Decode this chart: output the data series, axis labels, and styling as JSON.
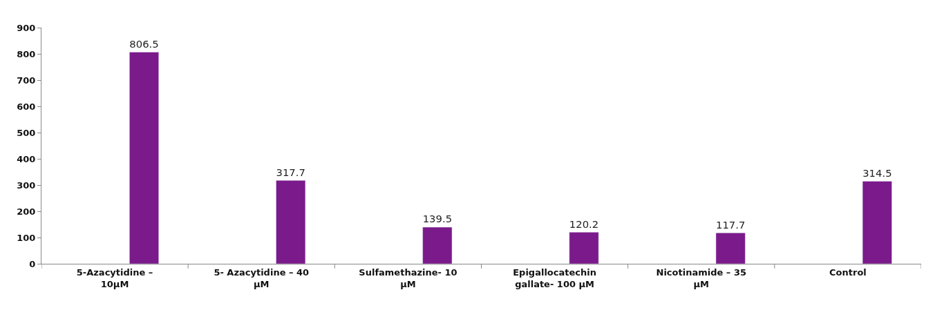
{
  "chart_data": {
    "type": "bar",
    "categories": [
      "5-Azacytidine –\n10µM",
      "5- Azacytidine – 40\nµM",
      "Sulfamethazine- 10\nµM",
      "Epigallocatechin\ngallate- 100 µM",
      "Nicotinamide – 35\nµM",
      "Control"
    ],
    "values": [
      806.5,
      317.7,
      139.5,
      120.2,
      117.7,
      314.5
    ],
    "color": "#7b1a8a",
    "ylim": [
      0,
      900
    ],
    "yticks": [
      0,
      100,
      200,
      300,
      400,
      500,
      600,
      700,
      800,
      900
    ],
    "data_labels": true
  }
}
